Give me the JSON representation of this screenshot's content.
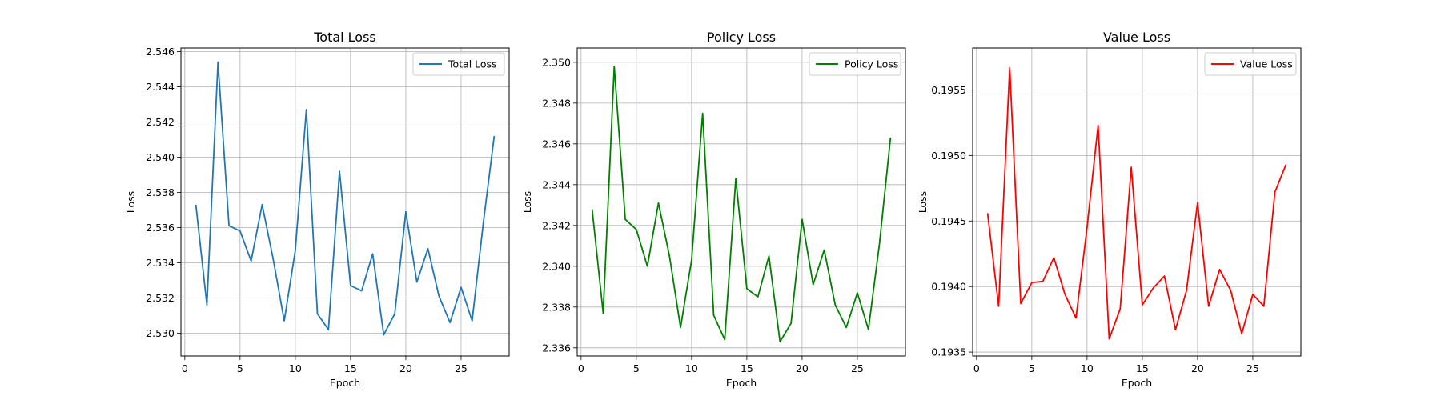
{
  "chart_data": [
    {
      "type": "line",
      "title": "Total Loss",
      "xlabel": "Epoch",
      "ylabel": "Loss",
      "xlim": [
        -0.35,
        29.35
      ],
      "ylim": [
        2.5287,
        2.5462
      ],
      "xticks": [
        0,
        5,
        10,
        15,
        20,
        25
      ],
      "yticks": [
        2.53,
        2.532,
        2.534,
        2.536,
        2.538,
        2.54,
        2.542,
        2.544,
        2.546
      ],
      "ytick_labels": [
        "2.530",
        "2.532",
        "2.534",
        "2.536",
        "2.538",
        "2.540",
        "2.542",
        "2.544",
        "2.546"
      ],
      "grid": true,
      "legend_position": "upper right",
      "x": [
        1,
        2,
        3,
        4,
        5,
        6,
        7,
        8,
        9,
        10,
        11,
        12,
        13,
        14,
        15,
        16,
        17,
        18,
        19,
        20,
        21,
        22,
        23,
        24,
        25,
        26,
        27,
        28
      ],
      "series": [
        {
          "name": "Total Loss",
          "color": "#1f77b4",
          "values": [
            2.5373,
            2.5316,
            2.5454,
            2.5361,
            2.5358,
            2.5341,
            2.5373,
            2.5342,
            2.5307,
            2.5347,
            2.5427,
            2.5311,
            2.5302,
            2.5392,
            2.5327,
            2.5324,
            2.5345,
            2.5299,
            2.5311,
            2.5369,
            2.5329,
            2.5348,
            2.5321,
            2.5306,
            2.5326,
            2.5307,
            2.5362,
            2.5412
          ]
        }
      ]
    },
    {
      "type": "line",
      "title": "Policy Loss",
      "xlabel": "Epoch",
      "ylabel": "Loss",
      "xlim": [
        -0.35,
        29.35
      ],
      "ylim": [
        2.3356,
        2.3507
      ],
      "xticks": [
        0,
        5,
        10,
        15,
        20,
        25
      ],
      "yticks": [
        2.336,
        2.338,
        2.34,
        2.342,
        2.344,
        2.346,
        2.348,
        2.35
      ],
      "ytick_labels": [
        "2.336",
        "2.338",
        "2.340",
        "2.342",
        "2.344",
        "2.346",
        "2.348",
        "2.350"
      ],
      "grid": true,
      "legend_position": "upper right",
      "x": [
        1,
        2,
        3,
        4,
        5,
        6,
        7,
        8,
        9,
        10,
        11,
        12,
        13,
        14,
        15,
        16,
        17,
        18,
        19,
        20,
        21,
        22,
        23,
        24,
        25,
        26,
        27,
        28
      ],
      "series": [
        {
          "name": "Policy Loss",
          "color": "#008000",
          "values": [
            2.3428,
            2.3377,
            2.3498,
            2.3423,
            2.3418,
            2.34,
            2.3431,
            2.3405,
            2.337,
            2.3403,
            2.3475,
            2.3376,
            2.3364,
            2.3443,
            2.3389,
            2.3385,
            2.3405,
            2.3363,
            2.3372,
            2.3423,
            2.3391,
            2.3408,
            2.3381,
            2.337,
            2.3387,
            2.3369,
            2.3411,
            2.3463
          ]
        }
      ]
    },
    {
      "type": "line",
      "title": "Value Loss",
      "xlabel": "Epoch",
      "ylabel": "Loss",
      "xlim": [
        -0.35,
        29.35
      ],
      "ylim": [
        0.19347,
        0.19582
      ],
      "xticks": [
        0,
        5,
        10,
        15,
        20,
        25
      ],
      "yticks": [
        0.1935,
        0.194,
        0.1945,
        0.195,
        0.1955
      ],
      "ytick_labels": [
        "0.1935",
        "0.1940",
        "0.1945",
        "0.1950",
        "0.1955"
      ],
      "grid": true,
      "legend_position": "upper right",
      "x": [
        1,
        2,
        3,
        4,
        5,
        6,
        7,
        8,
        9,
        10,
        11,
        12,
        13,
        14,
        15,
        16,
        17,
        18,
        19,
        20,
        21,
        22,
        23,
        24,
        25,
        26,
        27,
        28
      ],
      "series": [
        {
          "name": "Value Loss",
          "color": "#ff0000",
          "values": [
            0.19456,
            0.19385,
            0.19567,
            0.19387,
            0.19403,
            0.19404,
            0.19422,
            0.19394,
            0.19376,
            0.19445,
            0.19523,
            0.1936,
            0.19383,
            0.19491,
            0.19386,
            0.19399,
            0.19408,
            0.19367,
            0.19397,
            0.19464,
            0.19385,
            0.19413,
            0.19397,
            0.19364,
            0.19394,
            0.19385,
            0.19472,
            0.19493
          ]
        }
      ]
    }
  ]
}
